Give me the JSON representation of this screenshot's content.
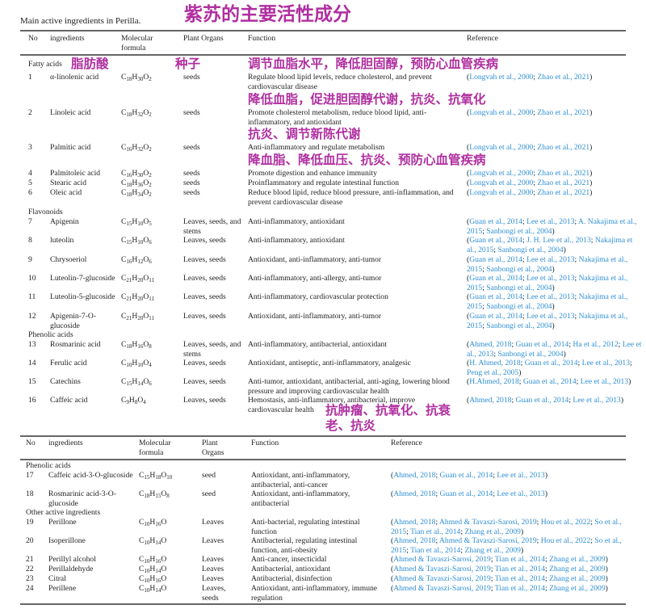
{
  "caption": "Main active ingredients in Perilla.",
  "overlay": {
    "title": "紫苏的主要活性成分",
    "fatty_acids": "脂肪酸",
    "seeds": "种子",
    "note_1": "调节血脂水平，降低胆固醇，预防心血管疾病",
    "note_2": "降低血脂，促进胆固醇代谢，抗炎、抗氧化",
    "note_3": "抗炎、调节新陈代谢",
    "note_4": "降血脂、降低血压、抗炎、预防心血管疾病",
    "note_16a": "抗肿瘤、抗氧化、抗衰",
    "note_16b": "老、抗炎",
    "color": "#b02fa0"
  },
  "link_color": "#2f8fd3",
  "headers": {
    "no": "No",
    "ingredients": "ingredients",
    "formula": "Molecular formula",
    "organs": "Plant Organs",
    "function": "Function",
    "reference": "Reference"
  },
  "headers2": {
    "no": "No",
    "ingredients": "ingredients",
    "formula": "Molecular formula",
    "organs": "Plant Organs",
    "function": "Function",
    "reference": "Reference"
  },
  "groups": {
    "fatty": "Fatty acids",
    "flavonoids": "Flavonoids",
    "phenolic": "Phenolic acids",
    "phenolic2": "Phenolic acids",
    "other": "Other active ingredients"
  },
  "rows": [
    {
      "no": "1",
      "name": "α-linolenic acid",
      "formula": "C<sub>18</sub>H<sub>30</sub>O<sub>2</sub>",
      "organs": "seeds",
      "function": "Regulate blood lipid levels, reduce cholesterol, and prevent cardiovascular disease",
      "refs": [
        "Longvah et al., 2000",
        "Zhao et al., 2021"
      ]
    },
    {
      "no": "2",
      "name": "Linoleic acid",
      "formula": "C<sub>18</sub>H<sub>32</sub>O<sub>2</sub>",
      "organs": "seeds",
      "function": "Promote cholesterol metabolism, reduce blood lipid, anti-inflammatory, and antioxidant",
      "refs": [
        "Longvah et al., 2000",
        "Zhao et al., 2021"
      ]
    },
    {
      "no": "3",
      "name": "Palmitic acid",
      "formula": "C<sub>16</sub>H<sub>32</sub>O<sub>2</sub>",
      "organs": "seeds",
      "function": "Anti-inflammatory and regulate metabolism",
      "refs": [
        "Longvah et al., 2000",
        "Zhao et al., 2021"
      ]
    },
    {
      "no": "4",
      "name": "Palmitoleic acid",
      "formula": "C<sub>16</sub>H<sub>30</sub>O<sub>2</sub>",
      "organs": "seeds",
      "function": "Promote digestion and enhance immunity",
      "refs": [
        "Longvah et al., 2000",
        "Zhao et al., 2021"
      ]
    },
    {
      "no": "5",
      "name": "Stearic acid",
      "formula": "C<sub>18</sub>H<sub>36</sub>O<sub>2</sub>",
      "organs": "seeds",
      "function": "Proinflammatory and regulate intestinal function",
      "refs": [
        "Longvah et al., 2000",
        "Zhao et al., 2021"
      ]
    },
    {
      "no": "6",
      "name": "Oleic acid",
      "formula": "C<sub>18</sub>H<sub>34</sub>O<sub>2</sub>",
      "organs": "seeds",
      "function": "Reduce blood lipid, reduce blood pressure, anti-inflammation, and prevent cardiovascular disease",
      "refs": [
        "Longvah et al., 2000",
        "Zhao et al., 2021"
      ]
    },
    {
      "no": "7",
      "name": "Apigenin",
      "formula": "C<sub>15</sub>H<sub>10</sub>O<sub>5</sub>",
      "organs": "Leaves, seeds, and stems",
      "function": "Anti-inflammatory, antioxidant",
      "refs": [
        "Guan et al., 2014",
        "Lee et al., 2013",
        "A. Nakajima et al., 2015",
        "Sanbongi et al., 2004"
      ]
    },
    {
      "no": "8",
      "name": "luteolin",
      "formula": "C<sub>15</sub>H<sub>10</sub>O<sub>6</sub>",
      "organs": "Leaves, seeds",
      "function": "Anti-inflammatory, antioxidant",
      "refs": [
        "Guan et al., 2014",
        "J. H. Lee et al., 2013",
        "Nakajima et al., 2015",
        "Sanbongi et al., 2004"
      ]
    },
    {
      "no": "9",
      "name": "Chrysoeriol",
      "formula": "C<sub>16</sub>H<sub>12</sub>O<sub>6</sub>",
      "organs": "Leaves, seeds",
      "function": "Antioxidant, anti-inflammatory, anti-tumor",
      "refs": [
        "Guan et al., 2014",
        "Lee et al., 2013",
        "Nakajima et al., 2015",
        "Sanbongi et al., 2004"
      ]
    },
    {
      "no": "10",
      "name": "Luteolin-7-glucoside",
      "formula": "C<sub>21</sub>H<sub>20</sub>O<sub>11</sub>",
      "organs": "Leaves, seeds",
      "function": "Anti-inflammatory, anti-allergy, anti-tumor",
      "refs": [
        "Guan et al., 2014",
        "Lee et al., 2013",
        "Nakajima et al., 2015",
        "Sanbongi et al., 2004"
      ]
    },
    {
      "no": "11",
      "name": "Luteolin-5-glucoside",
      "formula": "C<sub>21</sub>H<sub>20</sub>O<sub>11</sub>",
      "organs": "Leaves, seeds",
      "function": "Anti-inflammatory, cardiovascular protection",
      "refs": [
        "Guan et al., 2014",
        "Lee et al., 2013",
        "Nakajima et al., 2015",
        "Sanbongi et al., 2004"
      ]
    },
    {
      "no": "12",
      "name": "Apigenin-7-O-glucoside",
      "formula": "C<sub>21</sub>H<sub>20</sub>O<sub>11</sub>",
      "organs": "Leaves, seeds",
      "function": "Antioxidant, anti-inflammatory, anti-tumor",
      "refs": [
        "Guan et al., 2014",
        "Lee et al., 2013",
        "Nakajima et al., 2015",
        "Sanbongi et al., 2004"
      ]
    },
    {
      "no": "13",
      "name": "Rosmarinic acid",
      "formula": "C<sub>18</sub>H<sub>16</sub>O<sub>8</sub>",
      "organs": "Leaves, seeds, and stems",
      "function": "Anti-inflammatory, antibacterial, antioxidant",
      "refs": [
        "Ahmed, 2018",
        "Guan et al., 2014",
        "Ha et al., 2012",
        "Lee et al., 2013",
        "Sanbongi et al., 2004"
      ]
    },
    {
      "no": "14",
      "name": "Ferulic acid",
      "formula": "C<sub>10</sub>H<sub>10</sub>O<sub>4</sub>",
      "organs": "Leaves, seeds",
      "function": "Antioxidant, antiseptic, anti-inflammatory, analgesic",
      "refs": [
        "H. Ahmed, 2018",
        "Guan et al., 2014",
        "Lee et al., 2013",
        "Peng et al., 2005"
      ]
    },
    {
      "no": "15",
      "name": "Catechins",
      "formula": "C<sub>15</sub>H<sub>14</sub>O<sub>6</sub>",
      "organs": "Leaves, seeds",
      "function": "Anti-tumor, antioxidant, antibacterial, anti-aging, lowering blood pressure and improving cardiovascular health",
      "refs": [
        "H.Ahmed, 2018",
        "Guan et al., 2014",
        "Lee et al., 2013"
      ]
    },
    {
      "no": "16",
      "name": "Caffeic acid",
      "formula": "C<sub>9</sub>H<sub>8</sub>O<sub>4</sub>",
      "organs": "Leaves, seeds",
      "function": "Hemostasis, anti-inflammatory, antibacterial, improve cardiovascular health",
      "refs": [
        "Ahmed, 2018",
        "Guan et al., 2014",
        "Lee et al., 2013"
      ]
    },
    {
      "no": "17",
      "name": "Caffeic acid-3-O-glucoside",
      "formula": "C<sub>15</sub>H<sub>18</sub>O<sub>10</sub>",
      "organs": "seed",
      "function": "Antioxidant, anti-inflammatory, antibacterial, anti-cancer",
      "refs": [
        "Ahmed, 2018",
        "Guan et al., 2014",
        "Lee et al., 2013"
      ]
    },
    {
      "no": "18",
      "name": "Rosmarinic acid-3-O-glucoside",
      "formula": "C<sub>18</sub>H<sub>15</sub>O<sub>8</sub>",
      "organs": "seed",
      "function": "Antioxidant, anti-inflammatory, antibacterial",
      "refs": [
        "Ahmed, 2018",
        "Guan et al., 2014",
        "Lee et al., 2013"
      ]
    },
    {
      "no": "19",
      "name": "Perillone",
      "formula": "C<sub>10</sub>H<sub>16</sub>O",
      "organs": "Leaves",
      "function": "Anti-bacterial, regulating intestinal function",
      "refs": [
        "Ahmed, 2018",
        "Ahmed &amp; Tavaszi-Sarosi, 2019",
        "Hou et al., 2022",
        "So et al., 2015",
        "Tian et al., 2014",
        "Zhang et al., 2009"
      ]
    },
    {
      "no": "20",
      "name": "Isoperillone",
      "formula": "C<sub>10</sub>H<sub>14</sub>O",
      "organs": "Leaves",
      "function": "Antibacterial, regulating intestinal function, anti-obesity",
      "refs": [
        "Ahmed, 2018",
        "Ahmed &amp; Tavaszi-Sarosi, 2019",
        "Hou et al., 2022",
        "So et al., 2015",
        "Tian et al., 2014",
        "Zhang et al., 2009"
      ]
    },
    {
      "no": "21",
      "name": "Perillyl alcohol",
      "formula": "C<sub>10</sub>H<sub>16</sub>O",
      "organs": "Leaves",
      "function": "Anti-cancer, insecticidal",
      "refs": [
        "Ahmed &amp; Tavaszi-Sarosi, 2019",
        "Tian et al., 2014",
        "Zhang et al., 2009"
      ]
    },
    {
      "no": "22",
      "name": "Perillaldehyde",
      "formula": "C<sub>10</sub>H<sub>14</sub>O",
      "organs": "Leaves",
      "function": "Antibacterial, antioxidant",
      "refs": [
        "Ahmed &amp; Tavaszi-Sarosi, 2019",
        "Tian et al., 2014",
        "Zhang et al., 2009"
      ]
    },
    {
      "no": "23",
      "name": "Citral",
      "formula": "C<sub>10</sub>H<sub>16</sub>O",
      "organs": "Leaves",
      "function": "Antibacterial, disinfection",
      "refs": [
        "Ahmed &amp; Tavaszi-Sarosi, 2019",
        "Tian et al., 2014",
        "Zhang et al., 2009"
      ]
    },
    {
      "no": "24",
      "name": "Perillene",
      "formula": "C<sub>10</sub>H<sub>14</sub>O",
      "organs": "Leaves, seeds",
      "function": "Antioxidant, anti-inflammatory, immune regulation",
      "refs": [
        "Ahmed &amp; Tavaszi-Sarosi, 2019",
        "Tian et al., 2014",
        "Zhang et al., 2009"
      ]
    }
  ]
}
